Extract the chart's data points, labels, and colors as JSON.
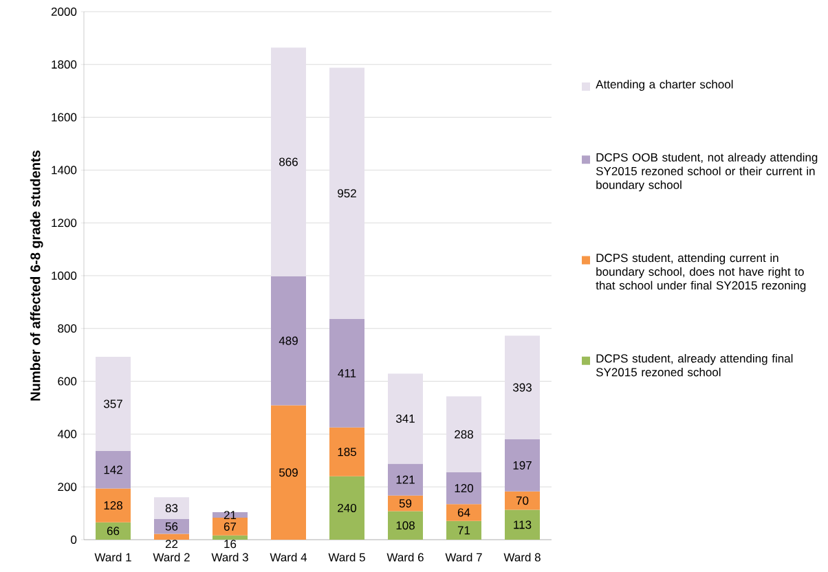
{
  "chart_data": {
    "type": "bar",
    "stacked": true,
    "ylabel": "Number of affected 6-8 grade students",
    "categories": [
      "Ward 1",
      "Ward 2",
      "Ward 3",
      "Ward 4",
      "Ward 5",
      "Ward 6",
      "Ward 7",
      "Ward 8"
    ],
    "series": [
      {
        "name": "DCPS student, already attending final SY2015 rezoned school",
        "color": "#9bbb59",
        "values": [
          66,
          null,
          16,
          null,
          240,
          108,
          71,
          113
        ]
      },
      {
        "name": "DCPS student, attending current in boundary school, does not have right to that school under final SY2015 rezoning",
        "color": "#f79646",
        "values": [
          128,
          22,
          67,
          509,
          185,
          59,
          64,
          70
        ]
      },
      {
        "name": "DCPS OOB student, not already attending SY2015 rezoned school or their current in boundary school",
        "color": "#b2a2c7",
        "values": [
          142,
          56,
          21,
          489,
          411,
          121,
          120,
          197
        ]
      },
      {
        "name": "Attending a charter school",
        "color": "#e6e0ec",
        "values": [
          357,
          83,
          null,
          866,
          952,
          341,
          288,
          393
        ]
      }
    ],
    "ylim": [
      0,
      2000
    ],
    "yticks": [
      0,
      200,
      400,
      600,
      800,
      1000,
      1200,
      1400,
      1600,
      1800,
      2000
    ],
    "grid": "y",
    "legend": "right",
    "data_labels": true
  }
}
